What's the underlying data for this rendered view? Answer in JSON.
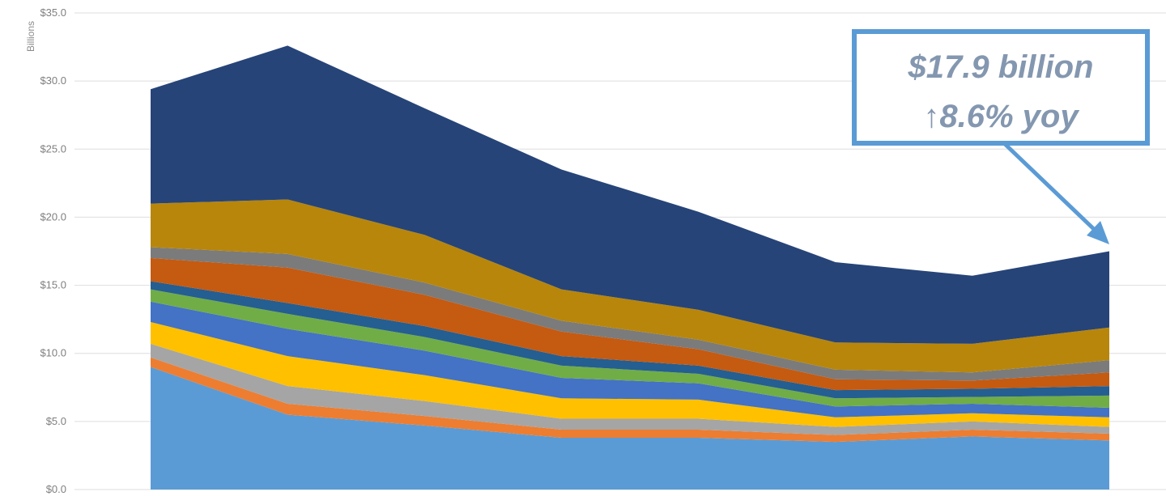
{
  "chart_data": {
    "type": "area",
    "stacked": true,
    "ylabel": "Billions",
    "ylim": [
      0,
      35
    ],
    "yticks": [
      "$0.0",
      "$5.0",
      "$10.0",
      "$15.0",
      "$20.0",
      "$25.0",
      "$30.0",
      "$35.0"
    ],
    "grid": true,
    "x": [
      1,
      2,
      3,
      4,
      5,
      6,
      7,
      8
    ],
    "series": [
      {
        "color": "#5b9bd5",
        "values": [
          9.0,
          5.5,
          4.7,
          3.8,
          3.8,
          3.5,
          3.9,
          3.6
        ]
      },
      {
        "color": "#ed7d31",
        "values": [
          0.7,
          0.8,
          0.7,
          0.6,
          0.6,
          0.5,
          0.5,
          0.5
        ]
      },
      {
        "color": "#a5a5a5",
        "values": [
          1.0,
          1.3,
          1.1,
          0.8,
          0.8,
          0.6,
          0.6,
          0.5
        ]
      },
      {
        "color": "#ffc000",
        "values": [
          1.6,
          2.2,
          1.9,
          1.5,
          1.4,
          0.7,
          0.6,
          0.7
        ]
      },
      {
        "color": "#4472c4",
        "values": [
          1.5,
          2.0,
          1.8,
          1.5,
          1.2,
          0.8,
          0.7,
          0.7
        ]
      },
      {
        "color": "#70ad47",
        "values": [
          0.9,
          1.1,
          1.0,
          0.9,
          0.7,
          0.6,
          0.5,
          0.9
        ]
      },
      {
        "color": "#255e91",
        "values": [
          0.6,
          0.8,
          0.8,
          0.7,
          0.6,
          0.6,
          0.6,
          0.7
        ]
      },
      {
        "color": "#c55a11",
        "values": [
          1.7,
          2.6,
          2.3,
          1.8,
          1.2,
          0.8,
          0.6,
          1.0
        ]
      },
      {
        "color": "#7b7b7b",
        "values": [
          0.8,
          1.0,
          0.9,
          0.8,
          0.7,
          0.7,
          0.6,
          0.9
        ]
      },
      {
        "color": "#b8860b",
        "values": [
          3.2,
          4.0,
          3.5,
          2.3,
          2.2,
          2.0,
          2.1,
          2.4
        ]
      },
      {
        "color": "#264478",
        "values": [
          8.4,
          11.3,
          9.3,
          8.8,
          7.2,
          5.9,
          5.0,
          5.6
        ]
      }
    ]
  },
  "callout": {
    "line1": "$17.9 billion",
    "line2": "↑8.6% yoy",
    "border_color": "#5b9bd5"
  }
}
